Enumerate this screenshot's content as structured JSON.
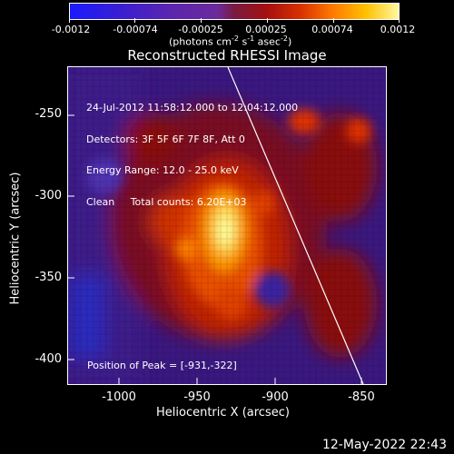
{
  "colorbar": {
    "ticks": [
      "-0.0012",
      "-0.00074",
      "-0.00025",
      "0.00025",
      "0.00074",
      "0.0012"
    ],
    "units_prefix": "(photons cm",
    "units_exp1": "-2",
    "units_mid": " s",
    "units_exp2": "-1",
    "units_mid2": " asec",
    "units_exp3": "-2",
    "units_suffix": ")"
  },
  "plot": {
    "title": "Reconstructed RHESSI Image",
    "info_lines": [
      "24-Jul-2012 11:58:12.000 to 12:04:12.000",
      "Detectors: 3F 5F 6F 7F 8F, Att 0",
      "Energy Range: 12.0 - 25.0 keV",
      "Clean     Total counts: 6.20E+03"
    ],
    "peak_label": "Position of Peak = [-931,-322]",
    "xlabel": "Heliocentric X (arcsec)",
    "ylabel": "Heliocentric Y (arcsec)",
    "xticks": [
      "-1000",
      "-950",
      "-900",
      "-850"
    ],
    "yticks": [
      "-250",
      "-300",
      "-350",
      "-400"
    ],
    "colors": {
      "background": "#000000",
      "low": "#2a1aa0",
      "mid": "#a01010",
      "high": "#ffff80"
    }
  },
  "timestamp": "12-May-2022 22:43"
}
